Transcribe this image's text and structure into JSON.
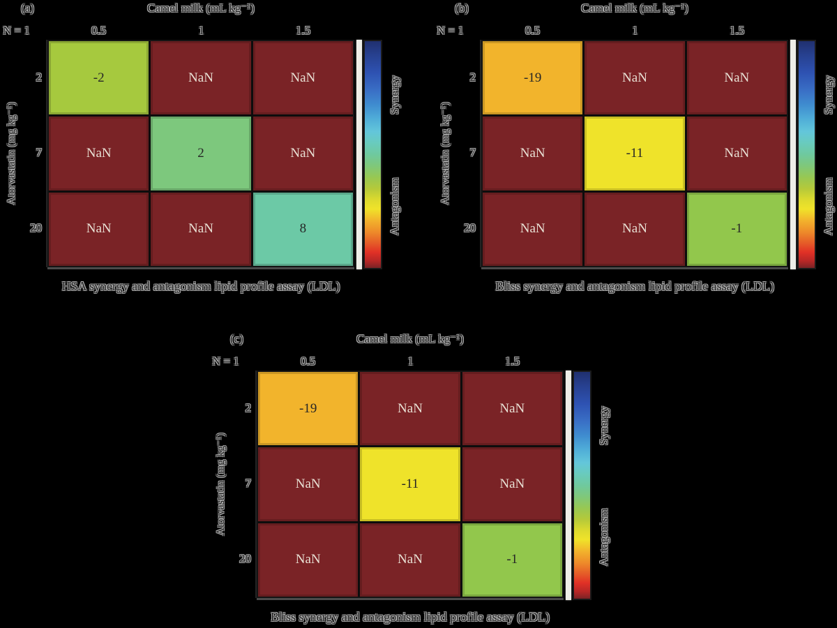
{
  "figure": {
    "background": "#000000",
    "colorbar": {
      "label_top": "Synergy",
      "label_bottom": "Antagonism",
      "gradient": [
        "#20306f 0%",
        "#27408f 6%",
        "#2e52b2 14%",
        "#3a70c6 22%",
        "#3f8ccf 28%",
        "#4facd8 34%",
        "#63c6da 40%",
        "#69cbbd 45%",
        "#6fc99e 50%",
        "#7fc87a 55%",
        "#97c853 60%",
        "#b5c93a 65%",
        "#ddda2e 70%",
        "#f0e32a 74%",
        "#f2b32c 79%",
        "#ee8c2a 84%",
        "#e55c28 89%",
        "#e13126 93%",
        "#b62726 97%",
        "#7a2326 100%"
      ]
    },
    "panels": [
      {
        "tag": "(a)",
        "title": "Camel milk (mL kg⁻¹)",
        "n_label": "N = 1",
        "x_ticks": [
          "0.5",
          "1",
          "1.5"
        ],
        "y_label": "Atorvastatin (mg kg⁻¹)",
        "y_ticks": [
          "2",
          "7",
          "20"
        ],
        "caption": "HSA synergy and antagonism lipid profile assay (LDL)",
        "cells": [
          [
            {
              "text": "-2",
              "bg": "#a6c93e",
              "fg": "#262626"
            },
            {
              "text": "NaN",
              "bg": "#7a2326",
              "fg": "#e9e1d5"
            },
            {
              "text": "NaN",
              "bg": "#7a2326",
              "fg": "#e9e1d5"
            }
          ],
          [
            {
              "text": "NaN",
              "bg": "#7a2326",
              "fg": "#e9e1d5"
            },
            {
              "text": "2",
              "bg": "#7dc87d",
              "fg": "#262626"
            },
            {
              "text": "NaN",
              "bg": "#7a2326",
              "fg": "#e9e1d5"
            }
          ],
          [
            {
              "text": "NaN",
              "bg": "#7a2326",
              "fg": "#e9e1d5"
            },
            {
              "text": "NaN",
              "bg": "#7a2326",
              "fg": "#e9e1d5"
            },
            {
              "text": "8",
              "bg": "#6cc9a6",
              "fg": "#262626"
            }
          ]
        ]
      },
      {
        "tag": "(b)",
        "title": "Camel milk (mL kg⁻¹)",
        "n_label": "N = 1",
        "x_ticks": [
          "0.5",
          "1",
          "1.5"
        ],
        "y_label": "Atorvastatin (mg kg⁻¹)",
        "y_ticks": [
          "2",
          "7",
          "20"
        ],
        "caption": "Bliss synergy and antagonism lipid profile assay (LDL)",
        "cells": [
          [
            {
              "text": "-19",
              "bg": "#f2b42c",
              "fg": "#262626"
            },
            {
              "text": "NaN",
              "bg": "#7a2326",
              "fg": "#e9e1d5"
            },
            {
              "text": "NaN",
              "bg": "#7a2326",
              "fg": "#e9e1d5"
            }
          ],
          [
            {
              "text": "NaN",
              "bg": "#7a2326",
              "fg": "#e9e1d5"
            },
            {
              "text": "-11",
              "bg": "#efe32a",
              "fg": "#262626"
            },
            {
              "text": "NaN",
              "bg": "#7a2326",
              "fg": "#e9e1d5"
            }
          ],
          [
            {
              "text": "NaN",
              "bg": "#7a2326",
              "fg": "#e9e1d5"
            },
            {
              "text": "NaN",
              "bg": "#7a2326",
              "fg": "#e9e1d5"
            },
            {
              "text": "-1",
              "bg": "#92c74c",
              "fg": "#262626"
            }
          ]
        ]
      },
      {
        "tag": "(c)",
        "title": "Camel milk (mL kg⁻¹)",
        "n_label": "N = 1",
        "x_ticks": [
          "0.5",
          "1",
          "1.5"
        ],
        "y_label": "Atorvastatin (mg kg⁻¹)",
        "y_ticks": [
          "2",
          "7",
          "20"
        ],
        "caption": "Bliss synergy and antagonism lipid profile assay (LDL)",
        "cells": [
          [
            {
              "text": "-19",
              "bg": "#f2b42c",
              "fg": "#262626"
            },
            {
              "text": "NaN",
              "bg": "#7a2326",
              "fg": "#e9e1d5"
            },
            {
              "text": "NaN",
              "bg": "#7a2326",
              "fg": "#e9e1d5"
            }
          ],
          [
            {
              "text": "NaN",
              "bg": "#7a2326",
              "fg": "#e9e1d5"
            },
            {
              "text": "-11",
              "bg": "#efe32a",
              "fg": "#262626"
            },
            {
              "text": "NaN",
              "bg": "#7a2326",
              "fg": "#e9e1d5"
            }
          ],
          [
            {
              "text": "NaN",
              "bg": "#7a2326",
              "fg": "#e9e1d5"
            },
            {
              "text": "NaN",
              "bg": "#7a2326",
              "fg": "#e9e1d5"
            },
            {
              "text": "-1",
              "bg": "#92c74c",
              "fg": "#262626"
            }
          ]
        ]
      }
    ]
  },
  "chart_data": [
    {
      "type": "heatmap",
      "panel": "(a)",
      "title": "Camel milk (mL kg⁻¹)",
      "xlabel": "Camel milk (mL kg⁻¹)",
      "ylabel": "Atorvastatin (mg kg⁻¹)",
      "x_categories": [
        "0.5",
        "1",
        "1.5"
      ],
      "y_categories": [
        "2",
        "7",
        "20"
      ],
      "n_label": "N = 1",
      "values": [
        [
          -2,
          null,
          null
        ],
        [
          null,
          2,
          null
        ],
        [
          null,
          null,
          8
        ]
      ],
      "nan_text": "NaN",
      "caption": "HSA synergy and antagonism lipid profile assay (LDL)",
      "colorbar_top_label": "Synergy",
      "colorbar_bottom_label": "Antagonism",
      "legend_position": "right"
    },
    {
      "type": "heatmap",
      "panel": "(b)",
      "title": "Camel milk (mL kg⁻¹)",
      "xlabel": "Camel milk (mL kg⁻¹)",
      "ylabel": "Atorvastatin (mg kg⁻¹)",
      "x_categories": [
        "0.5",
        "1",
        "1.5"
      ],
      "y_categories": [
        "2",
        "7",
        "20"
      ],
      "n_label": "N = 1",
      "values": [
        [
          -19,
          null,
          null
        ],
        [
          null,
          -11,
          null
        ],
        [
          null,
          null,
          -1
        ]
      ],
      "nan_text": "NaN",
      "caption": "Bliss synergy and antagonism lipid profile assay (LDL)",
      "colorbar_top_label": "Synergy",
      "colorbar_bottom_label": "Antagonism",
      "legend_position": "right"
    },
    {
      "type": "heatmap",
      "panel": "(c)",
      "title": "Camel milk (mL kg⁻¹)",
      "xlabel": "Camel milk (mL kg⁻¹)",
      "ylabel": "Atorvastatin (mg kg⁻¹)",
      "x_categories": [
        "0.5",
        "1",
        "1.5"
      ],
      "y_categories": [
        "2",
        "7",
        "20"
      ],
      "n_label": "N = 1",
      "values": [
        [
          -19,
          null,
          null
        ],
        [
          null,
          -11,
          null
        ],
        [
          null,
          null,
          -1
        ]
      ],
      "nan_text": "NaN",
      "caption": "Bliss synergy and antagonism lipid profile assay (LDL)",
      "colorbar_top_label": "Synergy",
      "colorbar_bottom_label": "Antagonism",
      "legend_position": "right"
    }
  ]
}
